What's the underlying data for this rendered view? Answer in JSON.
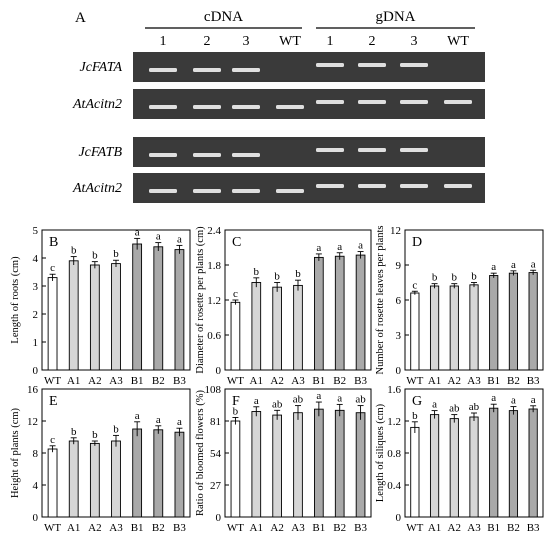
{
  "panel_a": {
    "label": "A",
    "groups": [
      {
        "title": "cDNA",
        "lanes": [
          "1",
          "2",
          "3",
          "WT"
        ]
      },
      {
        "title": "gDNA",
        "lanes": [
          "1",
          "2",
          "3",
          "WT"
        ]
      }
    ],
    "rows": [
      {
        "gene": "JcFATA",
        "bands": [
          1,
          1,
          1,
          0,
          1,
          1,
          1,
          0
        ],
        "size": [
          "s",
          "s",
          "s",
          "s",
          "l",
          "l",
          "l",
          "l"
        ]
      },
      {
        "gene": "AtAcitn2",
        "bands": [
          1,
          1,
          1,
          1,
          1,
          1,
          1,
          1
        ],
        "size": [
          "s",
          "s",
          "s",
          "s",
          "l",
          "l",
          "l",
          "l"
        ]
      },
      {
        "gene": "JcFATB",
        "bands": [
          1,
          1,
          1,
          0,
          1,
          1,
          1,
          0
        ],
        "size": [
          "s",
          "s",
          "s",
          "s",
          "l",
          "l",
          "l",
          "l"
        ]
      },
      {
        "gene": "AtAcitn2",
        "bands": [
          1,
          1,
          1,
          1,
          1,
          1,
          1,
          1
        ],
        "size": [
          "s",
          "s",
          "s",
          "s",
          "l",
          "l",
          "l",
          "l"
        ]
      }
    ]
  },
  "chart_data": [
    {
      "panel": "B",
      "type": "bar",
      "ylabel": "Length of roots (cm)",
      "categories": [
        "WT",
        "A1",
        "A2",
        "A3",
        "B1",
        "B2",
        "B3"
      ],
      "values": [
        3.3,
        3.9,
        3.75,
        3.8,
        4.5,
        4.4,
        4.3
      ],
      "errors": [
        0.12,
        0.15,
        0.12,
        0.12,
        0.2,
        0.15,
        0.15
      ],
      "letters": [
        "c",
        "b",
        "b",
        "b",
        "a",
        "a",
        "a"
      ],
      "ylim": [
        0,
        5
      ],
      "ticks": [
        "0",
        "1",
        "2",
        "3",
        "4",
        "5"
      ]
    },
    {
      "panel": "C",
      "type": "bar",
      "ylabel": "Diameter of rosette per plants (cm)",
      "categories": [
        "WT",
        "A1",
        "A2",
        "A3",
        "B1",
        "B2",
        "B3"
      ],
      "values": [
        1.16,
        1.5,
        1.42,
        1.45,
        1.93,
        1.95,
        1.97
      ],
      "errors": [
        0.04,
        0.08,
        0.08,
        0.09,
        0.06,
        0.06,
        0.06
      ],
      "letters": [
        "c",
        "b",
        "b",
        "b",
        "a",
        "a",
        "a"
      ],
      "ylim": [
        0,
        2.4
      ],
      "ticks": [
        "0",
        "0.6",
        "1.2",
        "1.8",
        "2.4"
      ]
    },
    {
      "panel": "D",
      "type": "bar",
      "ylabel": "Number of rosette leaves per plants",
      "categories": [
        "WT",
        "A1",
        "A2",
        "A3",
        "B1",
        "B2",
        "B3"
      ],
      "values": [
        6.6,
        7.2,
        7.2,
        7.3,
        8.1,
        8.3,
        8.35
      ],
      "errors": [
        0.15,
        0.2,
        0.2,
        0.2,
        0.2,
        0.2,
        0.2
      ],
      "letters": [
        "c",
        "b",
        "b",
        "b",
        "a",
        "a",
        "a"
      ],
      "ylim": [
        0,
        12
      ],
      "ticks": [
        "0",
        "3",
        "6",
        "9",
        "12"
      ]
    },
    {
      "panel": "E",
      "type": "bar",
      "ylabel": "Height of plants (cm)",
      "categories": [
        "WT",
        "A1",
        "A2",
        "A3",
        "B1",
        "B2",
        "B3"
      ],
      "values": [
        8.5,
        9.5,
        9.2,
        9.5,
        11.0,
        10.9,
        10.6
      ],
      "errors": [
        0.4,
        0.4,
        0.3,
        0.7,
        0.9,
        0.5,
        0.5
      ],
      "letters": [
        "c",
        "b",
        "b",
        "b",
        "a",
        "a",
        "a"
      ],
      "ylim": [
        0,
        16
      ],
      "ticks": [
        "0",
        "4",
        "8",
        "12",
        "16"
      ]
    },
    {
      "panel": "F",
      "type": "bar",
      "ylabel": "Ratio of bloomed flowers (%)",
      "categories": [
        "WT",
        "A1",
        "A2",
        "A3",
        "B1",
        "B2",
        "B3"
      ],
      "values": [
        81,
        89,
        86,
        88,
        91,
        90,
        88
      ],
      "errors": [
        3,
        4,
        4,
        6,
        6,
        5,
        6
      ],
      "letters": [
        "b",
        "a",
        "ab",
        "ab",
        "a",
        "a",
        "ab"
      ],
      "ylim": [
        0,
        108
      ],
      "ticks": [
        "0",
        "27",
        "54",
        "81",
        "108"
      ]
    },
    {
      "panel": "G",
      "type": "bar",
      "ylabel": "Length of siliques (cm)",
      "categories": [
        "WT",
        "A1",
        "A2",
        "A3",
        "B1",
        "B2",
        "B3"
      ],
      "values": [
        1.12,
        1.28,
        1.23,
        1.25,
        1.36,
        1.33,
        1.35
      ],
      "errors": [
        0.07,
        0.05,
        0.05,
        0.05,
        0.05,
        0.05,
        0.04
      ],
      "letters": [
        "b",
        "a",
        "ab",
        "ab",
        "a",
        "a",
        "a"
      ],
      "ylim": [
        0,
        1.6
      ],
      "ticks": [
        "0",
        "0.4",
        "0.8",
        "1.2",
        "1.6"
      ]
    }
  ],
  "colors": {
    "wt_bar": "#ffffff",
    "a_bar": "#d6d6d6",
    "b_bar": "#a9a9a9",
    "gel_bg": "#3a3a3a",
    "band": "#f2f2f2"
  }
}
